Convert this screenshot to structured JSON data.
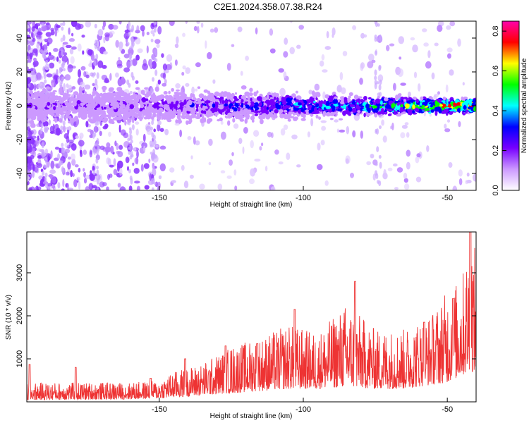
{
  "title": "C2E1.2024.358.07.38.R24",
  "chart_data": [
    {
      "type": "heatmap",
      "xlabel": "Height of straight line (km)",
      "ylabel": "Frequency (Hz)",
      "xlim": [
        -196,
        -40
      ],
      "ylim": [
        -50,
        50
      ],
      "x_ticks": [
        -150,
        -100,
        -50
      ],
      "y_ticks": [
        -40,
        -20,
        0,
        20,
        40
      ],
      "colorbar": {
        "label": "Normalized spectral amplitude",
        "range": [
          0.0,
          0.85
        ],
        "ticks": [
          0.0,
          0.2,
          0.4,
          0.6,
          0.8
        ],
        "colors": [
          "#ffffff",
          "#cc99ff",
          "#7700ff",
          "#0000ff",
          "#00ffff",
          "#00ff00",
          "#ffff00",
          "#ff0000",
          "#ff00aa"
        ]
      },
      "ridge": {
        "center_freq": 0,
        "band_points": [
          {
            "x": -196,
            "half_width": 10
          },
          {
            "x": -150,
            "half_width": 9
          },
          {
            "x": -120,
            "half_width": 8
          },
          {
            "x": -100,
            "half_width": 7
          },
          {
            "x": -80,
            "half_width": 6
          },
          {
            "x": -60,
            "half_width": 5
          },
          {
            "x": -42,
            "half_width": 4
          }
        ],
        "amplitude_points": [
          {
            "x": -196,
            "amp": 0.15
          },
          {
            "x": -150,
            "amp": 0.2
          },
          {
            "x": -120,
            "amp": 0.3
          },
          {
            "x": -100,
            "amp": 0.4
          },
          {
            "x": -80,
            "amp": 0.45
          },
          {
            "x": -60,
            "amp": 0.6
          },
          {
            "x": -45,
            "amp": 0.75
          }
        ]
      }
    },
    {
      "type": "line",
      "xlabel": "Height of straight line (km)",
      "ylabel": "SNR (10 * v/v)",
      "xlim": [
        -196,
        -40
      ],
      "ylim": [
        0,
        3950
      ],
      "x_ticks": [
        -150,
        -100,
        -50
      ],
      "y_ticks": [
        1000,
        2000,
        3000
      ],
      "color": "#ee3333",
      "envelope": [
        {
          "x": -196,
          "low": 40,
          "high": 450
        },
        {
          "x": -180,
          "low": 50,
          "high": 450
        },
        {
          "x": -160,
          "low": 60,
          "high": 450
        },
        {
          "x": -150,
          "low": 80,
          "high": 500
        },
        {
          "x": -145,
          "low": 100,
          "high": 700
        },
        {
          "x": -135,
          "low": 150,
          "high": 900
        },
        {
          "x": -125,
          "low": 200,
          "high": 1300
        },
        {
          "x": -115,
          "low": 250,
          "high": 1500
        },
        {
          "x": -105,
          "low": 300,
          "high": 1800
        },
        {
          "x": -95,
          "low": 300,
          "high": 1600
        },
        {
          "x": -85,
          "low": 350,
          "high": 2300
        },
        {
          "x": -75,
          "low": 300,
          "high": 1700
        },
        {
          "x": -65,
          "low": 300,
          "high": 1700
        },
        {
          "x": -55,
          "low": 400,
          "high": 2100
        },
        {
          "x": -50,
          "low": 450,
          "high": 2600
        },
        {
          "x": -45,
          "low": 600,
          "high": 2900
        },
        {
          "x": -42,
          "low": 700,
          "high": 3900
        },
        {
          "x": -40,
          "low": 700,
          "high": 3500
        }
      ],
      "peaks": [
        {
          "x": -195,
          "y": 870
        },
        {
          "x": -179,
          "y": 800
        },
        {
          "x": -153,
          "y": 550
        },
        {
          "x": -141,
          "y": 1000
        },
        {
          "x": -127,
          "y": 1300
        },
        {
          "x": -116,
          "y": 1350
        },
        {
          "x": -103,
          "y": 2150
        },
        {
          "x": -82,
          "y": 2800
        },
        {
          "x": -58,
          "y": 1850
        },
        {
          "x": -48,
          "y": 2400
        },
        {
          "x": -42,
          "y": 3950
        }
      ]
    }
  ]
}
